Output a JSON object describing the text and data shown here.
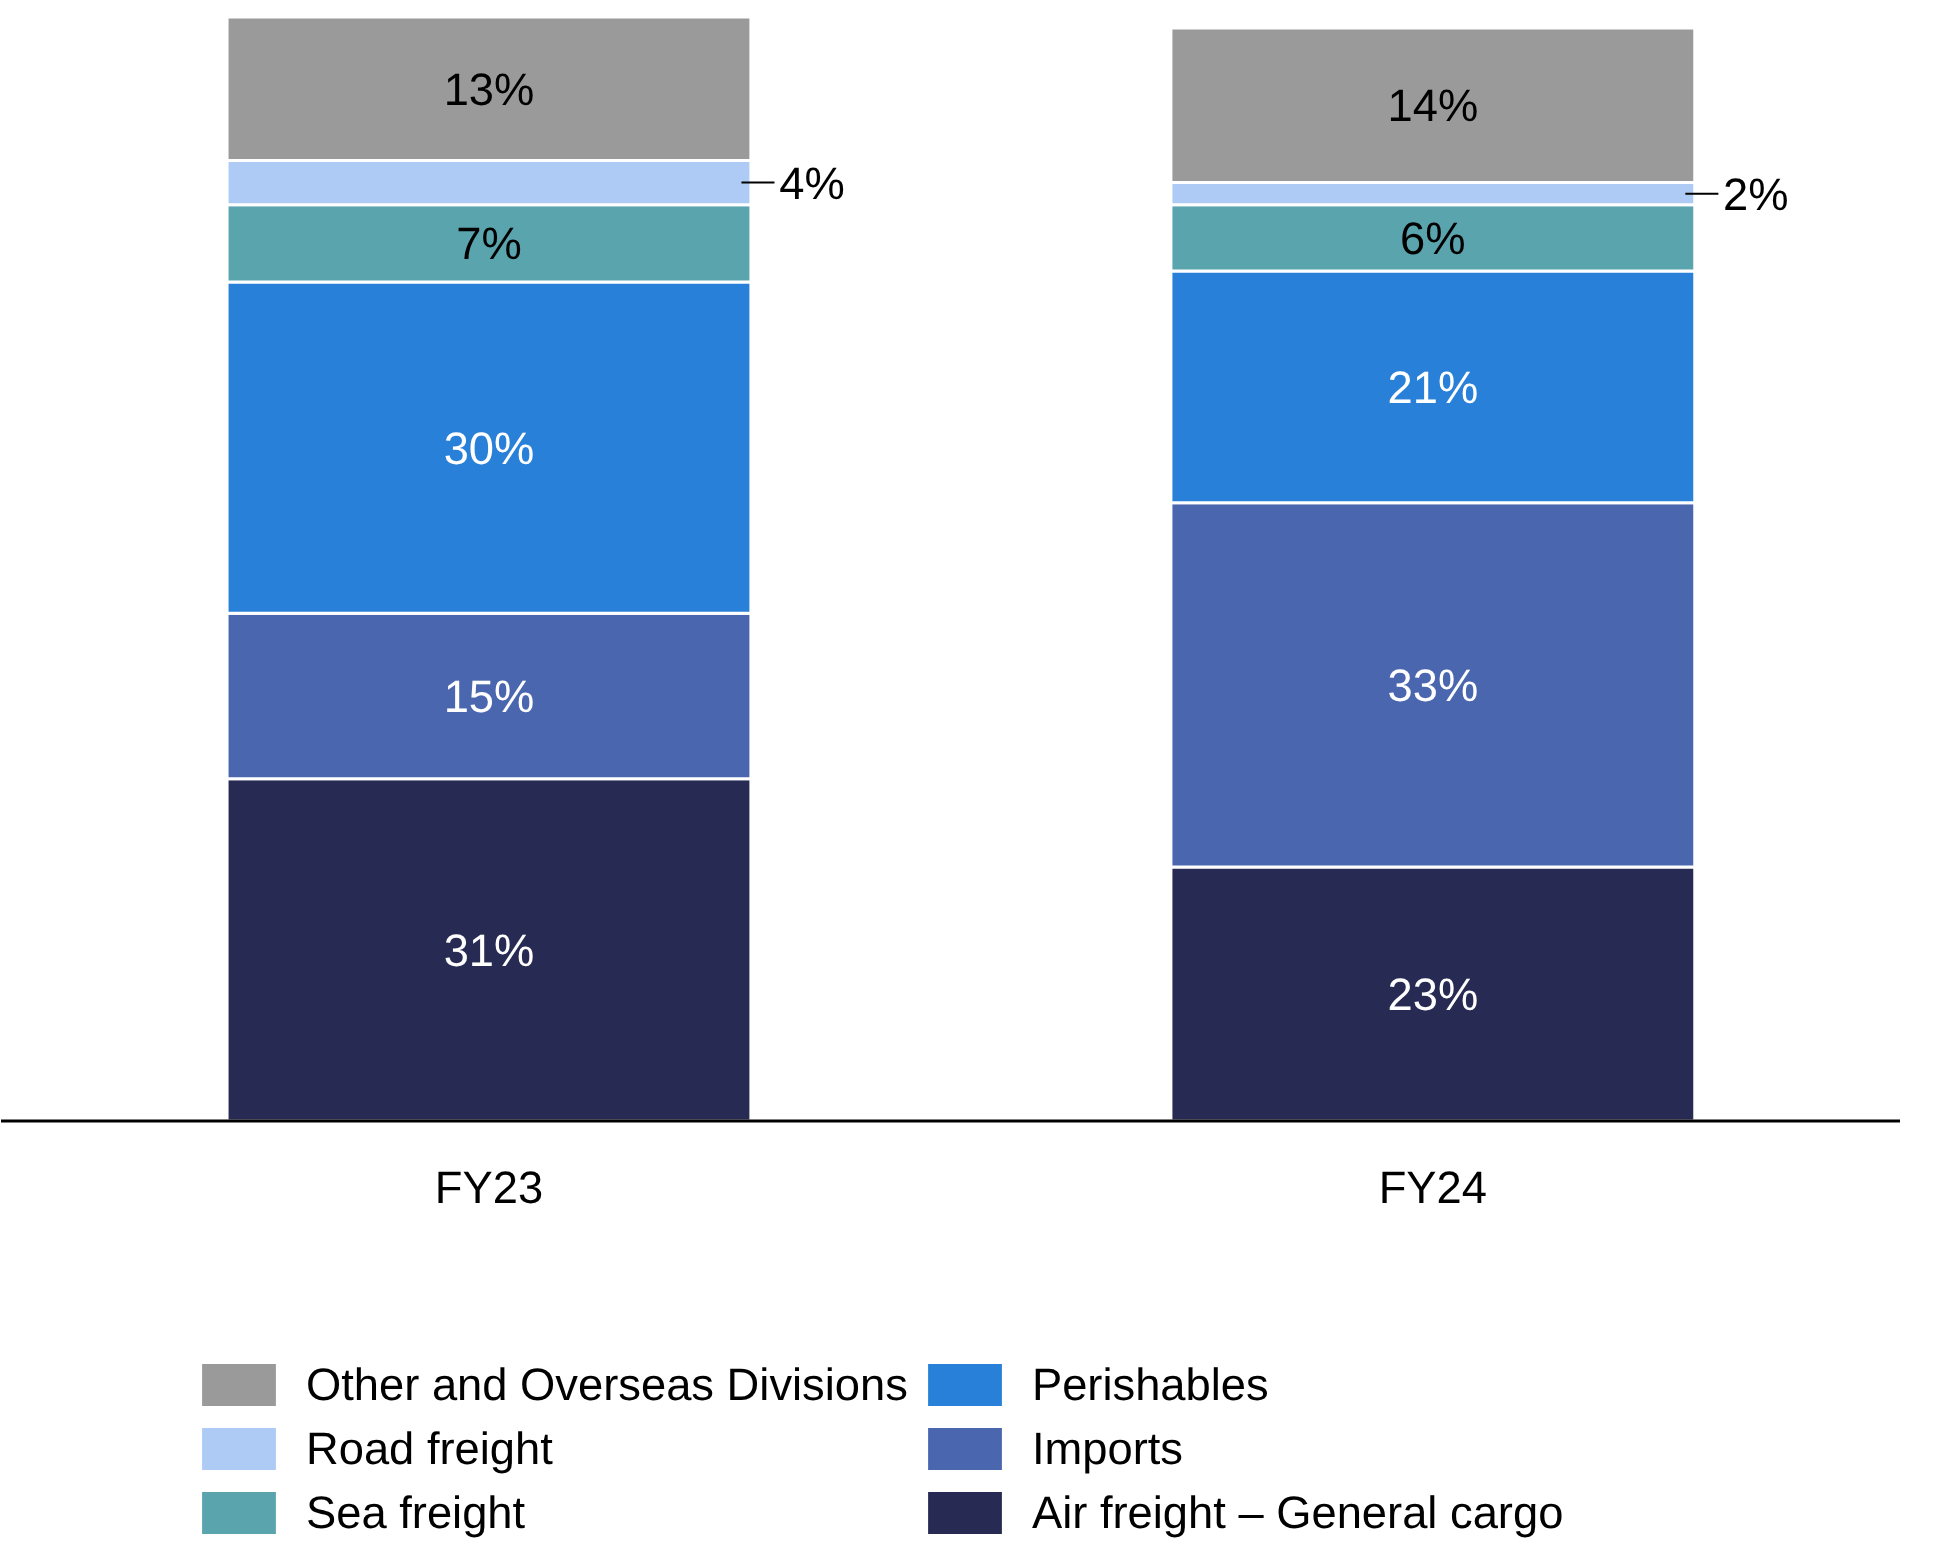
{
  "chart_data": {
    "type": "bar",
    "stacked": true,
    "categories": [
      "FY23",
      "FY24"
    ],
    "tick_labels": "x",
    "legend": "bottom",
    "data_labels": true,
    "series": [
      {
        "name": "Air freight – General cargo",
        "color": "#272a52",
        "values": [
          31,
          23
        ],
        "value_labels": [
          "31%",
          "23%"
        ]
      },
      {
        "name": "Imports",
        "color": "#4a66ae",
        "values": [
          15,
          33
        ],
        "value_labels": [
          "15%",
          "33%"
        ]
      },
      {
        "name": "Perishables",
        "color": "#2980d9",
        "values": [
          30,
          21
        ],
        "value_labels": [
          "30%",
          "21%"
        ]
      },
      {
        "name": "Sea freight",
        "color": "#5aa4ae",
        "values": [
          7,
          6
        ],
        "value_labels": [
          "7%",
          "6%"
        ]
      },
      {
        "name": "Road freight",
        "color": "#adcbf5",
        "values": [
          4,
          2
        ],
        "value_labels": [
          "4%",
          "2%"
        ]
      },
      {
        "name": "Other and Overseas Divisions",
        "color": "#9a9a9a",
        "values": [
          13,
          14
        ],
        "value_labels": [
          "13%",
          "14%"
        ]
      }
    ]
  }
}
